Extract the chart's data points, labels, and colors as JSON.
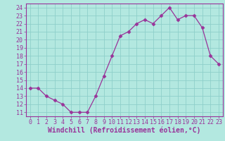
{
  "x": [
    0,
    1,
    2,
    3,
    4,
    5,
    6,
    7,
    8,
    9,
    10,
    11,
    12,
    13,
    14,
    15,
    16,
    17,
    18,
    19,
    20,
    21,
    22,
    23
  ],
  "y": [
    14,
    14,
    13,
    12.5,
    12,
    11,
    11,
    11,
    13,
    15.5,
    18,
    20.5,
    21,
    22,
    22.5,
    22,
    23,
    24,
    22.5,
    23,
    23,
    21.5,
    18,
    17
  ],
  "line_color": "#993399",
  "marker": "D",
  "marker_size": 2.5,
  "bg_color": "#b3e8e0",
  "grid_color": "#8ecfca",
  "axis_bg_color": "#b3e8e0",
  "xlabel": "Windchill (Refroidissement éolien,°C)",
  "xlabel_color": "#993399",
  "tick_color": "#993399",
  "spine_color": "#993399",
  "ylim": [
    10.5,
    24.5
  ],
  "xlim": [
    -0.5,
    23.5
  ],
  "yticks": [
    11,
    12,
    13,
    14,
    15,
    16,
    17,
    18,
    19,
    20,
    21,
    22,
    23,
    24
  ],
  "xticks": [
    0,
    1,
    2,
    3,
    4,
    5,
    6,
    7,
    8,
    9,
    10,
    11,
    12,
    13,
    14,
    15,
    16,
    17,
    18,
    19,
    20,
    21,
    22,
    23
  ],
  "tick_fontsize": 6,
  "xlabel_fontsize": 7
}
